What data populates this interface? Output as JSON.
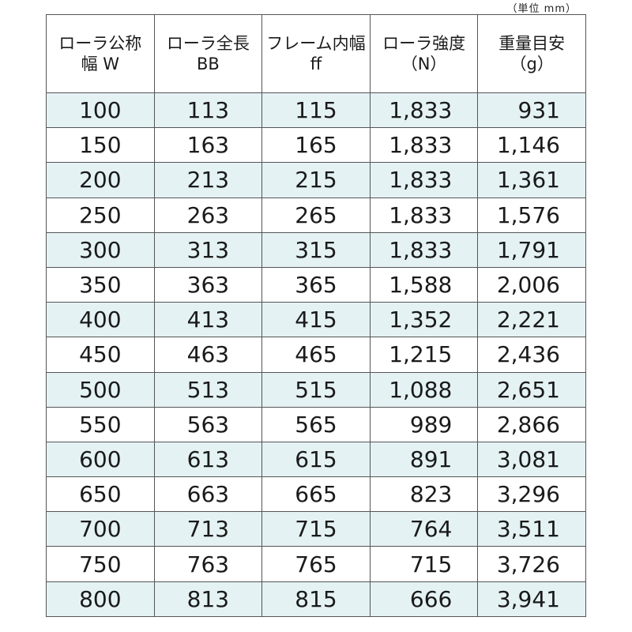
{
  "unit_note": "（単位 mm）",
  "headers": [
    {
      "line1": "ローラ公称",
      "line2": "幅 W"
    },
    {
      "line1": "ローラ全長",
      "line2": "BB"
    },
    {
      "line1": "フレーム内幅",
      "line2": "ff"
    },
    {
      "line1": "ローラ強度",
      "line2": "（N）"
    },
    {
      "line1": "重量目安",
      "line2": "（g）"
    }
  ],
  "rows": [
    [
      "100",
      "113",
      "115",
      "1,833",
      "931"
    ],
    [
      "150",
      "163",
      "165",
      "1,833",
      "1,146"
    ],
    [
      "200",
      "213",
      "215",
      "1,833",
      "1,361"
    ],
    [
      "250",
      "263",
      "265",
      "1,833",
      "1,576"
    ],
    [
      "300",
      "313",
      "315",
      "1,833",
      "1,791"
    ],
    [
      "350",
      "363",
      "365",
      "1,588",
      "2,006"
    ],
    [
      "400",
      "413",
      "415",
      "1,352",
      "2,221"
    ],
    [
      "450",
      "463",
      "465",
      "1,215",
      "2,436"
    ],
    [
      "500",
      "513",
      "515",
      "1,088",
      "2,651"
    ],
    [
      "550",
      "563",
      "565",
      "989",
      "2,866"
    ],
    [
      "600",
      "613",
      "615",
      "891",
      "3,081"
    ],
    [
      "650",
      "663",
      "665",
      "823",
      "3,296"
    ],
    [
      "700",
      "713",
      "715",
      "764",
      "3,511"
    ],
    [
      "750",
      "763",
      "765",
      "715",
      "3,726"
    ],
    [
      "800",
      "813",
      "815",
      "666",
      "3,941"
    ]
  ],
  "colors": {
    "alt_row": "#e4f2f4",
    "border": "#555555",
    "text": "#1a1a1a"
  }
}
